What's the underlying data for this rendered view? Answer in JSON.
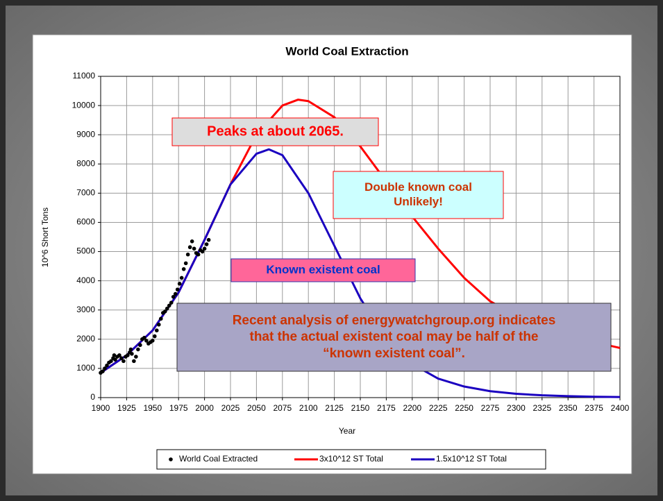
{
  "chart_data": {
    "type": "line",
    "title": "World Coal Extraction",
    "xlabel": "Year",
    "ylabel": "10^6 Short Tons",
    "xlim": [
      1900,
      2400
    ],
    "ylim": [
      0,
      11000
    ],
    "xticks": [
      1900,
      1925,
      1950,
      1975,
      2000,
      2025,
      2050,
      2075,
      2100,
      2125,
      2150,
      2175,
      2200,
      2225,
      2250,
      2275,
      2300,
      2325,
      2350,
      2375,
      2400
    ],
    "yticks": [
      0,
      1000,
      2000,
      3000,
      4000,
      5000,
      6000,
      7000,
      8000,
      9000,
      10000,
      11000
    ],
    "grid": true,
    "series": [
      {
        "name": "World Coal Extracted",
        "type": "scatter",
        "color": "#000000",
        "x": [
          1900,
          1902,
          1904,
          1906,
          1908,
          1910,
          1912,
          1913,
          1914,
          1916,
          1918,
          1920,
          1922,
          1924,
          1926,
          1928,
          1929,
          1930,
          1932,
          1934,
          1936,
          1938,
          1940,
          1942,
          1944,
          1946,
          1948,
          1950,
          1952,
          1954,
          1956,
          1958,
          1960,
          1962,
          1964,
          1966,
          1968,
          1970,
          1972,
          1974,
          1976,
          1978,
          1980,
          1982,
          1984,
          1986,
          1988,
          1990,
          1992,
          1994,
          1996,
          1998,
          2000,
          2002,
          2004
        ],
        "values": [
          850,
          900,
          1000,
          1100,
          1200,
          1250,
          1350,
          1450,
          1300,
          1400,
          1450,
          1350,
          1250,
          1400,
          1450,
          1550,
          1650,
          1500,
          1250,
          1400,
          1650,
          1800,
          2000,
          2050,
          1950,
          1850,
          1900,
          1950,
          2100,
          2300,
          2500,
          2700,
          2900,
          2950,
          3050,
          3150,
          3250,
          3450,
          3550,
          3700,
          3900,
          4100,
          4400,
          4600,
          4900,
          5150,
          5350,
          5100,
          4950,
          4900,
          5050,
          5000,
          5100,
          5250,
          5400
        ]
      },
      {
        "name": "3x10^12 ST Total",
        "type": "line",
        "color": "#ff0000",
        "x": [
          1900,
          1925,
          1950,
          1975,
          2000,
          2025,
          2050,
          2075,
          2090,
          2100,
          2125,
          2150,
          2175,
          2200,
          2225,
          2250,
          2275,
          2300,
          2325,
          2350,
          2375,
          2400
        ],
        "values": [
          850,
          1450,
          2300,
          3600,
          5400,
          7300,
          9000,
          10000,
          10200,
          10150,
          9600,
          8600,
          7400,
          6200,
          5100,
          4100,
          3300,
          2800,
          2400,
          2100,
          1900,
          1700
        ]
      },
      {
        "name": "1.5x10^12 ST Total",
        "type": "line",
        "color": "#1a00c0",
        "x": [
          1900,
          1925,
          1950,
          1975,
          2000,
          2025,
          2050,
          2062,
          2075,
          2100,
          2125,
          2150,
          2175,
          2200,
          2225,
          2250,
          2275,
          2300,
          2325,
          2350,
          2375,
          2400
        ],
        "values": [
          850,
          1450,
          2300,
          3600,
          5400,
          7300,
          8350,
          8500,
          8300,
          7000,
          5200,
          3400,
          2000,
          1150,
          650,
          380,
          220,
          130,
          80,
          50,
          30,
          20
        ]
      }
    ],
    "annotations": [
      {
        "lines": [
          "Peaks at about 2065."
        ]
      },
      {
        "lines": [
          "Double known coal",
          "Unlikely!"
        ]
      },
      {
        "lines": [
          "Known existent coal"
        ]
      },
      {
        "lines": [
          "Recent analysis of energywatchgroup.org indicates",
          "that the actual existent coal may be half of the",
          "“known existent coal”."
        ]
      }
    ]
  }
}
